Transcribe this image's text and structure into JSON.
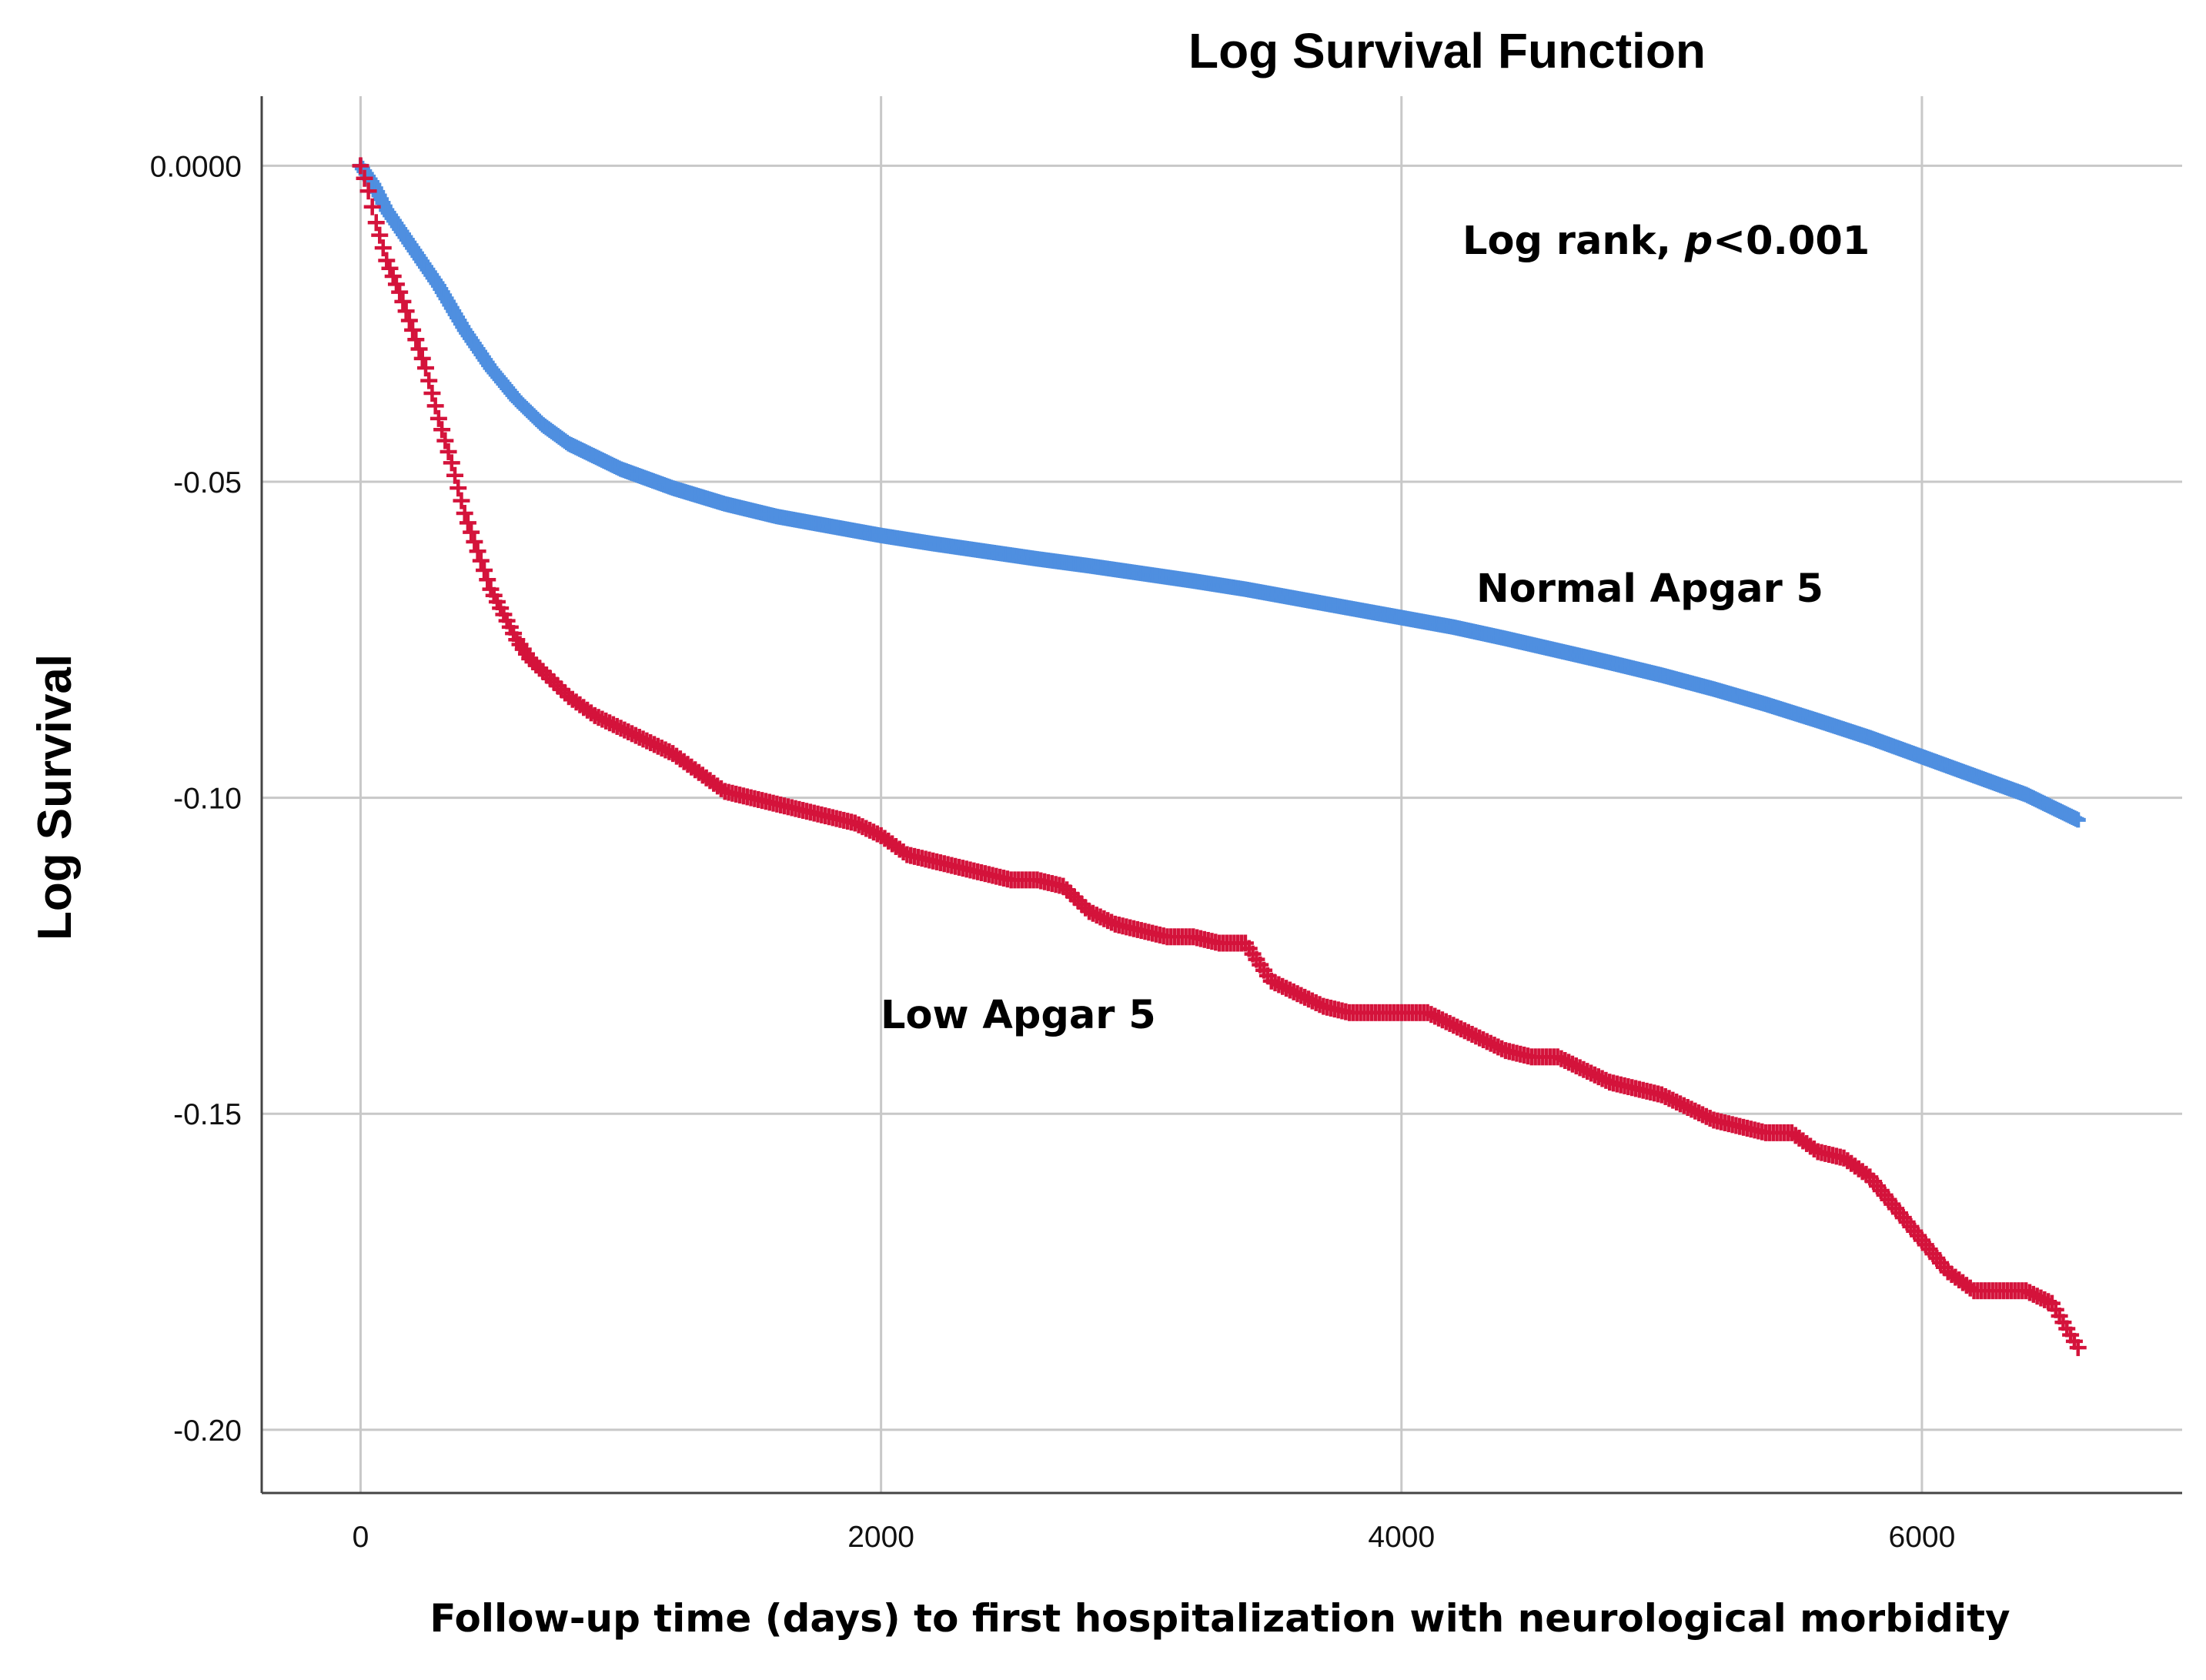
{
  "chart_data": {
    "type": "scatter",
    "title": "Log Survival Function",
    "xlabel": "Follow-up time (days) to first hospitalization with neurological morbidity",
    "ylabel": "Log Survival",
    "xlim": [
      -380,
      7000
    ],
    "ylim": [
      -0.21,
      0.011
    ],
    "x_ticks": [
      0,
      2000,
      4000,
      6000
    ],
    "x_tick_labels": [
      "0",
      "2000",
      "4000",
      "6000"
    ],
    "y_ticks": [
      0,
      -0.05,
      -0.1,
      -0.15,
      -0.2
    ],
    "y_tick_labels": [
      "0.0000",
      "-0.05",
      "-0.10",
      "-0.15",
      "-0.20"
    ],
    "grid": true,
    "annotations": {
      "log_rank_prefix": "Log rank, ",
      "log_rank_p": "p",
      "log_rank_suffix": "<0.001",
      "normal_label": "Normal Apgar 5",
      "low_label": "Low Apgar 5"
    },
    "series": [
      {
        "name": "Normal Apgar 5",
        "color": "#4f8fe0",
        "marker": "+",
        "x": [
          0,
          50,
          100,
          150,
          200,
          300,
          400,
          500,
          600,
          700,
          800,
          900,
          1000,
          1200,
          1400,
          1600,
          1800,
          2000,
          2200,
          2400,
          2600,
          2800,
          3000,
          3200,
          3400,
          3600,
          3800,
          4000,
          4200,
          4400,
          4600,
          4800,
          5000,
          5200,
          5400,
          5600,
          5800,
          6000,
          6200,
          6400,
          6600
        ],
        "y": [
          0,
          -0.003,
          -0.007,
          -0.01,
          -0.013,
          -0.019,
          -0.026,
          -0.032,
          -0.037,
          -0.041,
          -0.044,
          -0.046,
          -0.048,
          -0.051,
          -0.0535,
          -0.0555,
          -0.057,
          -0.0585,
          -0.0598,
          -0.061,
          -0.0622,
          -0.0633,
          -0.0645,
          -0.0657,
          -0.067,
          -0.0685,
          -0.07,
          -0.0715,
          -0.073,
          -0.0748,
          -0.0767,
          -0.0786,
          -0.0806,
          -0.0828,
          -0.0852,
          -0.0878,
          -0.0905,
          -0.0935,
          -0.0965,
          -0.0995,
          -0.1035
        ]
      },
      {
        "name": "Low Apgar 5",
        "color": "#d4133b",
        "marker": "+",
        "x": [
          0,
          30,
          60,
          100,
          150,
          200,
          250,
          300,
          350,
          400,
          450,
          500,
          550,
          600,
          650,
          700,
          800,
          900,
          1000,
          1100,
          1200,
          1300,
          1400,
          1500,
          1600,
          1700,
          1800,
          1900,
          2000,
          2100,
          2200,
          2300,
          2400,
          2500,
          2600,
          2700,
          2800,
          2900,
          3000,
          3100,
          3200,
          3300,
          3400,
          3500,
          3600,
          3700,
          3800,
          3900,
          4000,
          4100,
          4200,
          4300,
          4400,
          4500,
          4600,
          4700,
          4800,
          4900,
          5000,
          5100,
          5200,
          5300,
          5400,
          5500,
          5600,
          5700,
          5800,
          5900,
          6000,
          6100,
          6200,
          6300,
          6400,
          6500,
          6600
        ],
        "y": [
          0,
          -0.004,
          -0.009,
          -0.015,
          -0.02,
          -0.026,
          -0.032,
          -0.04,
          -0.047,
          -0.055,
          -0.061,
          -0.067,
          -0.071,
          -0.075,
          -0.078,
          -0.08,
          -0.084,
          -0.087,
          -0.089,
          -0.091,
          -0.093,
          -0.096,
          -0.099,
          -0.1,
          -0.101,
          -0.102,
          -0.103,
          -0.104,
          -0.106,
          -0.109,
          -0.11,
          -0.111,
          -0.112,
          -0.113,
          -0.113,
          -0.114,
          -0.118,
          -0.12,
          -0.121,
          -0.122,
          -0.122,
          -0.123,
          -0.123,
          -0.129,
          -0.131,
          -0.133,
          -0.134,
          -0.134,
          -0.134,
          -0.134,
          -0.136,
          -0.138,
          -0.14,
          -0.141,
          -0.141,
          -0.143,
          -0.145,
          -0.146,
          -0.147,
          -0.149,
          -0.151,
          -0.152,
          -0.153,
          -0.153,
          -0.156,
          -0.157,
          -0.16,
          -0.165,
          -0.17,
          -0.175,
          -0.178,
          -0.178,
          -0.178,
          -0.18,
          -0.187
        ]
      }
    ]
  }
}
